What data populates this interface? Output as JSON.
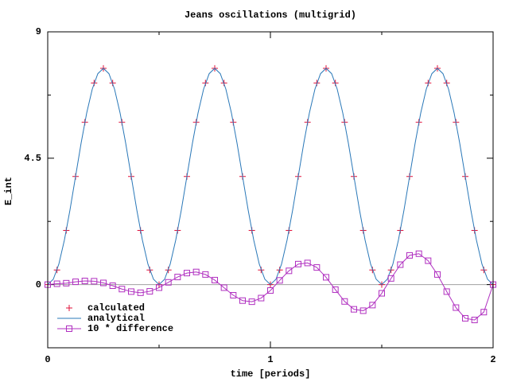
{
  "chart_data": {
    "type": "line",
    "title": "Jeans oscillations (multigrid)",
    "xlabel": "time [periods]",
    "ylabel": "E_int",
    "xlim": [
      0,
      2
    ],
    "ylim": [
      -2.25,
      9
    ],
    "xticks": [
      0,
      1,
      2
    ],
    "yticks": [
      0,
      4.5,
      9
    ],
    "xminorticks": [
      0.5,
      1.5
    ],
    "yminorticks": [
      2.25,
      6.75
    ],
    "legend": "bottom-left",
    "series": [
      {
        "name": "calculated",
        "color": "#e0103a",
        "marker": "plus",
        "x": [
          0,
          0.0417,
          0.0833,
          0.125,
          0.1667,
          0.2083,
          0.25,
          0.2917,
          0.3333,
          0.375,
          0.4167,
          0.4583,
          0.5,
          0.5417,
          0.5833,
          0.625,
          0.6667,
          0.7083,
          0.75,
          0.7917,
          0.8333,
          0.875,
          0.9167,
          0.9583,
          1,
          1.0417,
          1.0833,
          1.125,
          1.1667,
          1.2083,
          1.25,
          1.2917,
          1.3333,
          1.375,
          1.4167,
          1.4583,
          1.5,
          1.5417,
          1.5833,
          1.625,
          1.6667,
          1.7083,
          1.75,
          1.7917,
          1.8333,
          1.875,
          1.9167,
          1.9583,
          2
        ],
        "values": [
          0,
          0.52,
          1.93,
          3.85,
          5.78,
          7.18,
          7.7,
          7.18,
          5.78,
          3.85,
          1.93,
          0.52,
          0,
          0.52,
          1.93,
          3.85,
          5.78,
          7.18,
          7.7,
          7.18,
          5.78,
          3.85,
          1.93,
          0.52,
          0,
          0.52,
          1.93,
          3.85,
          5.78,
          7.18,
          7.7,
          7.18,
          5.78,
          3.85,
          1.93,
          0.52,
          0,
          0.52,
          1.93,
          3.85,
          5.78,
          7.18,
          7.7,
          7.18,
          5.78,
          3.85,
          1.93,
          0.52,
          0
        ]
      },
      {
        "name": "analytical",
        "color": "#2a78b8",
        "marker": "none",
        "x": [
          0,
          0.025,
          0.05,
          0.075,
          0.1,
          0.125,
          0.15,
          0.175,
          0.2,
          0.225,
          0.25,
          0.275,
          0.3,
          0.325,
          0.35,
          0.375,
          0.4,
          0.425,
          0.45,
          0.475,
          0.5,
          0.525,
          0.55,
          0.575,
          0.6,
          0.625,
          0.65,
          0.675,
          0.7,
          0.725,
          0.75,
          0.775,
          0.8,
          0.825,
          0.85,
          0.875,
          0.9,
          0.925,
          0.95,
          0.975,
          1,
          1.025,
          1.05,
          1.075,
          1.1,
          1.125,
          1.15,
          1.175,
          1.2,
          1.225,
          1.25,
          1.275,
          1.3,
          1.325,
          1.35,
          1.375,
          1.4,
          1.425,
          1.45,
          1.475,
          1.5,
          1.525,
          1.55,
          1.575,
          1.6,
          1.625,
          1.65,
          1.675,
          1.7,
          1.725,
          1.75,
          1.775,
          1.8,
          1.825,
          1.85,
          1.875,
          1.9,
          1.925,
          1.95,
          1.975,
          2
        ],
        "values": [
          0,
          0.19,
          0.73,
          1.59,
          2.66,
          3.85,
          5.04,
          6.11,
          6.96,
          7.51,
          7.7,
          7.51,
          6.96,
          6.11,
          5.04,
          3.85,
          2.66,
          1.59,
          0.73,
          0.19,
          0,
          0.19,
          0.73,
          1.59,
          2.66,
          3.85,
          5.04,
          6.11,
          6.96,
          7.51,
          7.7,
          7.51,
          6.96,
          6.11,
          5.04,
          3.85,
          2.66,
          1.59,
          0.73,
          0.19,
          0,
          0.19,
          0.73,
          1.59,
          2.66,
          3.85,
          5.04,
          6.11,
          6.96,
          7.51,
          7.7,
          7.51,
          6.96,
          6.11,
          5.04,
          3.85,
          2.66,
          1.59,
          0.73,
          0.19,
          0,
          0.19,
          0.73,
          1.59,
          2.66,
          3.85,
          5.04,
          6.11,
          6.96,
          7.51,
          7.7,
          7.51,
          6.96,
          6.11,
          5.04,
          3.85,
          2.66,
          1.59,
          0.73,
          0.19,
          0
        ]
      },
      {
        "name": "10 * difference",
        "color": "#b030c0",
        "marker": "square",
        "x": [
          0,
          0.0417,
          0.0833,
          0.125,
          0.1667,
          0.2083,
          0.25,
          0.2917,
          0.3333,
          0.375,
          0.4167,
          0.4583,
          0.5,
          0.5417,
          0.5833,
          0.625,
          0.6667,
          0.7083,
          0.75,
          0.7917,
          0.8333,
          0.875,
          0.9167,
          0.9583,
          1,
          1.0417,
          1.0833,
          1.125,
          1.1667,
          1.2083,
          1.25,
          1.2917,
          1.3333,
          1.375,
          1.4167,
          1.4583,
          1.5,
          1.5417,
          1.5833,
          1.625,
          1.6667,
          1.7083,
          1.75,
          1.7917,
          1.8333,
          1.875,
          1.9167,
          1.9583,
          2
        ],
        "values": [
          0,
          0.03,
          0.05,
          0.1,
          0.13,
          0.12,
          0.06,
          -0.04,
          -0.16,
          -0.25,
          -0.29,
          -0.24,
          -0.11,
          0.08,
          0.27,
          0.41,
          0.45,
          0.36,
          0.16,
          -0.11,
          -0.38,
          -0.57,
          -0.61,
          -0.48,
          -0.21,
          0.15,
          0.49,
          0.73,
          0.77,
          0.61,
          0.26,
          -0.18,
          -0.6,
          -0.88,
          -0.93,
          -0.73,
          -0.31,
          0.22,
          0.71,
          1.04,
          1.1,
          0.85,
          0.36,
          -0.25,
          -0.82,
          -1.2,
          -1.26,
          -0.98,
          0
        ]
      }
    ]
  }
}
